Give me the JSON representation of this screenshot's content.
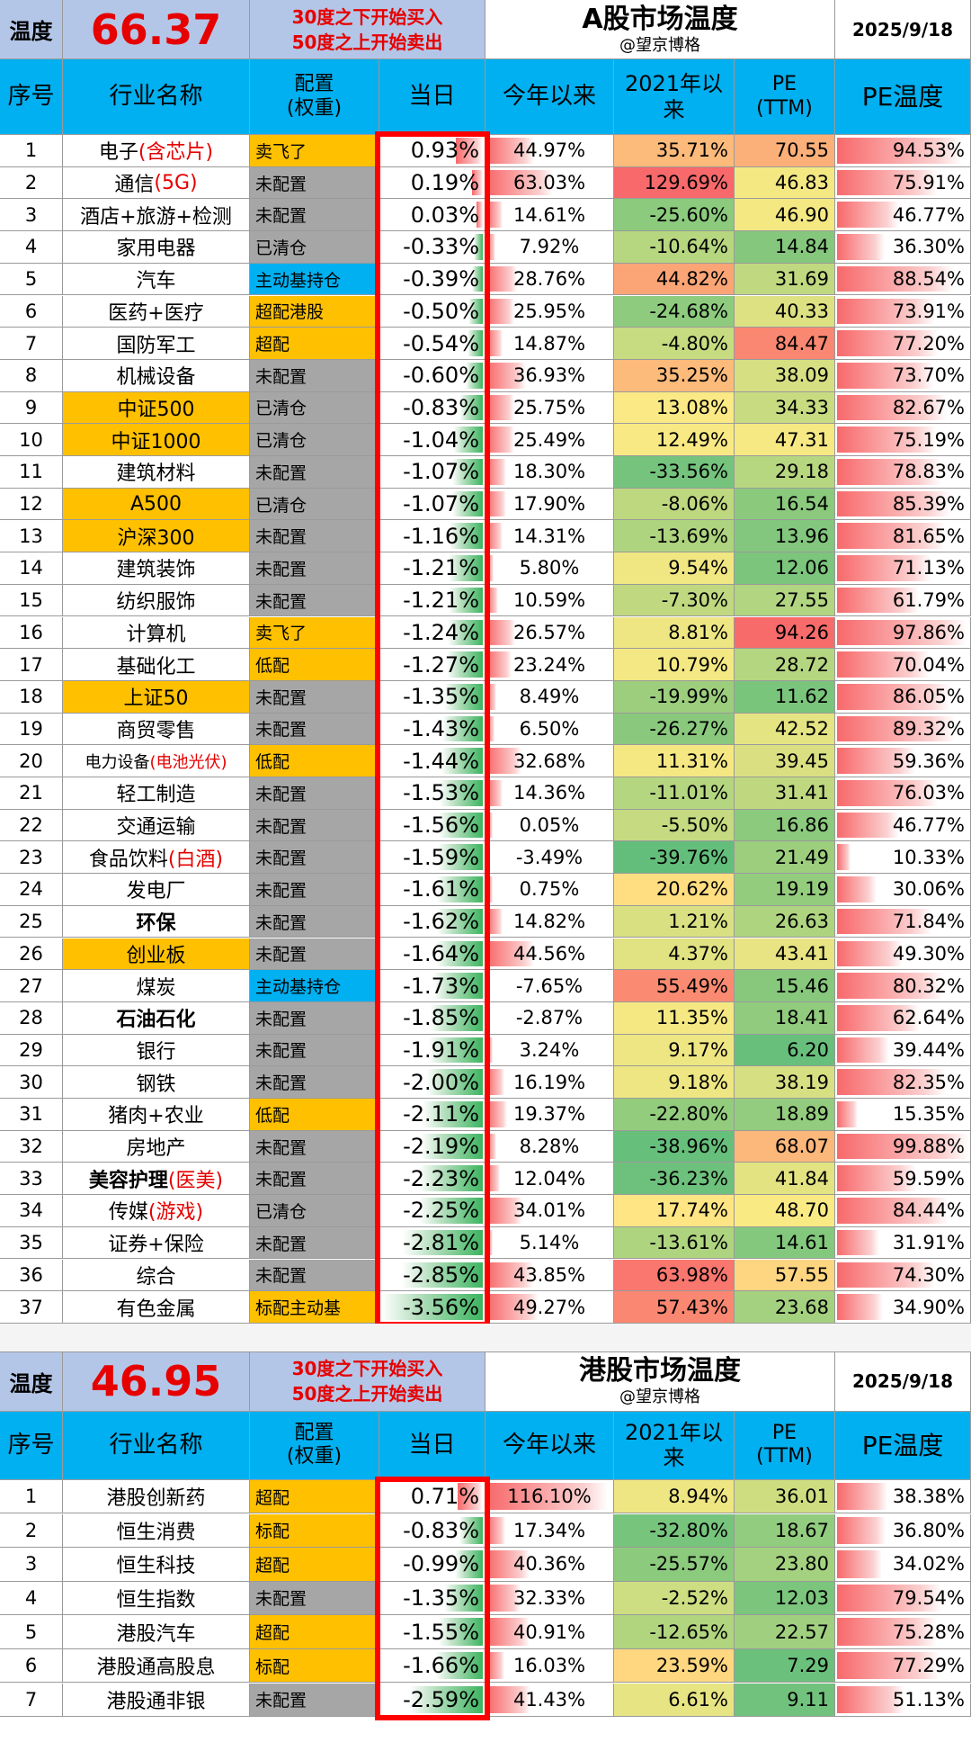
{
  "a_share": {
    "temp_label": "温度",
    "temp_value": "66.37",
    "rule_line1": "30度之下开始买入",
    "rule_line2": "50度之上开始卖出",
    "title": "A股市场温度",
    "author": "@望京博格",
    "date": "2025/9/18",
    "headers": [
      "序号",
      "行业名称",
      "配置\n(权重)",
      "当日",
      "今年以来",
      "2021年以来",
      "PE\n(TTM)",
      "PE温度"
    ],
    "rows": [
      {
        "no": "1",
        "name": "电子",
        "name_red": "(含芯片)",
        "alloc": "卖飞了",
        "day": "0.93%",
        "ytd": "44.97%",
        "since21": "35.71%",
        "pe": "70.55",
        "pet": "94.53%"
      },
      {
        "no": "2",
        "name": "通信",
        "name_red": "(5G)",
        "alloc": "未配置",
        "day": "0.19%",
        "ytd": "63.03%",
        "since21": "129.69%",
        "pe": "46.83",
        "pet": "75.91%"
      },
      {
        "no": "3",
        "name": "酒店+旅游+检测",
        "name_red": "",
        "alloc": "未配置",
        "day": "0.03%",
        "ytd": "14.61%",
        "since21": "-25.60%",
        "pe": "46.90",
        "pet": "46.77%"
      },
      {
        "no": "4",
        "name": "家用电器",
        "name_red": "",
        "alloc": "已清仓",
        "day": "-0.33%",
        "ytd": "7.92%",
        "since21": "-10.64%",
        "pe": "14.84",
        "pet": "36.30%"
      },
      {
        "no": "5",
        "name": "汽车",
        "name_red": "",
        "alloc": "主动基持仓",
        "day": "-0.39%",
        "ytd": "28.76%",
        "since21": "44.82%",
        "pe": "31.69",
        "pet": "88.54%"
      },
      {
        "no": "6",
        "name": "医药+医疗",
        "name_red": "",
        "alloc": "超配港股",
        "day": "-0.50%",
        "ytd": "25.95%",
        "since21": "-24.68%",
        "pe": "40.33",
        "pet": "73.91%"
      },
      {
        "no": "7",
        "name": "国防军工",
        "name_red": "",
        "alloc": "超配",
        "day": "-0.54%",
        "ytd": "14.87%",
        "since21": "-4.80%",
        "pe": "84.47",
        "pet": "77.20%"
      },
      {
        "no": "8",
        "name": "机械设备",
        "name_red": "",
        "alloc": "未配置",
        "day": "-0.60%",
        "ytd": "36.93%",
        "since21": "35.25%",
        "pe": "38.09",
        "pet": "73.70%"
      },
      {
        "no": "9",
        "name": "中证500",
        "name_red": "",
        "alloc": "已清仓",
        "day": "-0.83%",
        "ytd": "25.75%",
        "since21": "13.08%",
        "pe": "34.33",
        "pet": "82.67%"
      },
      {
        "no": "10",
        "name": "中证1000",
        "name_red": "",
        "alloc": "已清仓",
        "day": "-1.04%",
        "ytd": "25.49%",
        "since21": "12.49%",
        "pe": "47.31",
        "pet": "75.19%"
      },
      {
        "no": "11",
        "name": "建筑材料",
        "name_red": "",
        "alloc": "未配置",
        "day": "-1.07%",
        "ytd": "18.30%",
        "since21": "-33.56%",
        "pe": "29.18",
        "pet": "78.83%"
      },
      {
        "no": "12",
        "name": "A500",
        "name_red": "",
        "alloc": "已清仓",
        "day": "-1.07%",
        "ytd": "17.90%",
        "since21": "-8.06%",
        "pe": "16.54",
        "pet": "85.39%"
      },
      {
        "no": "13",
        "name": "沪深300",
        "name_red": "",
        "alloc": "未配置",
        "day": "-1.16%",
        "ytd": "14.31%",
        "since21": "-13.69%",
        "pe": "13.96",
        "pet": "81.65%"
      },
      {
        "no": "14",
        "name": "建筑装饰",
        "name_red": "",
        "alloc": "未配置",
        "day": "-1.21%",
        "ytd": "5.80%",
        "since21": "9.54%",
        "pe": "12.06",
        "pet": "71.13%"
      },
      {
        "no": "15",
        "name": "纺织服饰",
        "name_red": "",
        "alloc": "未配置",
        "day": "-1.21%",
        "ytd": "10.59%",
        "since21": "-7.30%",
        "pe": "27.55",
        "pet": "61.79%"
      },
      {
        "no": "16",
        "name": "计算机",
        "name_red": "",
        "alloc": "卖飞了",
        "day": "-1.24%",
        "ytd": "26.57%",
        "since21": "8.81%",
        "pe": "94.26",
        "pet": "97.86%"
      },
      {
        "no": "17",
        "name": "基础化工",
        "name_red": "",
        "alloc": "低配",
        "day": "-1.27%",
        "ytd": "23.24%",
        "since21": "10.79%",
        "pe": "28.72",
        "pet": "70.04%"
      },
      {
        "no": "18",
        "name": "上证50",
        "name_red": "",
        "alloc": "未配置",
        "day": "-1.35%",
        "ytd": "8.49%",
        "since21": "-19.99%",
        "pe": "11.62",
        "pet": "86.05%"
      },
      {
        "no": "19",
        "name": "商贸零售",
        "name_red": "",
        "alloc": "未配置",
        "day": "-1.43%",
        "ytd": "6.50%",
        "since21": "-26.27%",
        "pe": "42.52",
        "pet": "89.32%"
      },
      {
        "no": "20",
        "name": "电力设备",
        "name_red": "(电池光伏)",
        "alloc": "低配",
        "day": "-1.44%",
        "ytd": "32.68%",
        "since21": "11.31%",
        "pe": "39.45",
        "pet": "59.36%"
      },
      {
        "no": "21",
        "name": "轻工制造",
        "name_red": "",
        "alloc": "未配置",
        "day": "-1.53%",
        "ytd": "14.36%",
        "since21": "-11.01%",
        "pe": "31.41",
        "pet": "76.03%"
      },
      {
        "no": "22",
        "name": "交通运输",
        "name_red": "",
        "alloc": "未配置",
        "day": "-1.56%",
        "ytd": "0.05%",
        "since21": "-5.50%",
        "pe": "16.86",
        "pet": "46.77%"
      },
      {
        "no": "23",
        "name": "食品饮料",
        "name_red": "(白酒)",
        "alloc": "未配置",
        "day": "-1.59%",
        "ytd": "-3.49%",
        "since21": "-39.76%",
        "pe": "21.49",
        "pet": "10.33%"
      },
      {
        "no": "24",
        "name": "发电厂",
        "name_red": "",
        "alloc": "未配置",
        "day": "-1.61%",
        "ytd": "0.75%",
        "since21": "20.62%",
        "pe": "19.19",
        "pet": "30.06%"
      },
      {
        "no": "25",
        "name": "环保",
        "name_red": "",
        "alloc": "未配置",
        "day": "-1.62%",
        "ytd": "14.82%",
        "since21": "1.21%",
        "pe": "26.63",
        "pet": "71.84%"
      },
      {
        "no": "26",
        "name": "创业板",
        "name_red": "",
        "alloc": "未配置",
        "day": "-1.64%",
        "ytd": "44.56%",
        "since21": "4.37%",
        "pe": "43.41",
        "pet": "49.30%"
      },
      {
        "no": "27",
        "name": "煤炭",
        "name_red": "",
        "alloc": "主动基持仓",
        "day": "-1.73%",
        "ytd": "-7.65%",
        "since21": "55.49%",
        "pe": "15.46",
        "pet": "80.32%"
      },
      {
        "no": "28",
        "name": "石油石化",
        "name_red": "",
        "alloc": "未配置",
        "day": "-1.85%",
        "ytd": "-2.87%",
        "since21": "11.35%",
        "pe": "18.41",
        "pet": "62.64%"
      },
      {
        "no": "29",
        "name": "银行",
        "name_red": "",
        "alloc": "未配置",
        "day": "-1.91%",
        "ytd": "3.24%",
        "since21": "9.17%",
        "pe": "6.20",
        "pet": "39.44%"
      },
      {
        "no": "30",
        "name": "钢铁",
        "name_red": "",
        "alloc": "未配置",
        "day": "-2.00%",
        "ytd": "16.19%",
        "since21": "9.18%",
        "pe": "38.19",
        "pet": "82.35%"
      },
      {
        "no": "31",
        "name": "猪肉+农业",
        "name_red": "",
        "alloc": "低配",
        "day": "-2.11%",
        "ytd": "19.37%",
        "since21": "-22.80%",
        "pe": "18.89",
        "pet": "15.35%"
      },
      {
        "no": "32",
        "name": "房地产",
        "name_red": "",
        "alloc": "未配置",
        "day": "-2.19%",
        "ytd": "8.28%",
        "since21": "-38.96%",
        "pe": "68.07",
        "pet": "99.88%"
      },
      {
        "no": "33",
        "name": "美容护理",
        "name_red": "(医美)",
        "alloc": "未配置",
        "day": "-2.23%",
        "ytd": "12.04%",
        "since21": "-36.23%",
        "pe": "41.84",
        "pet": "59.59%"
      },
      {
        "no": "34",
        "name": "传媒",
        "name_red": "(游戏)",
        "alloc": "已清仓",
        "day": "-2.25%",
        "ytd": "34.01%",
        "since21": "17.74%",
        "pe": "48.70",
        "pet": "84.44%"
      },
      {
        "no": "35",
        "name": "证券+保险",
        "name_red": "",
        "alloc": "未配置",
        "day": "-2.81%",
        "ytd": "5.14%",
        "since21": "-13.61%",
        "pe": "14.61",
        "pet": "31.91%"
      },
      {
        "no": "36",
        "name": "综合",
        "name_red": "",
        "alloc": "未配置",
        "day": "-2.85%",
        "ytd": "43.85%",
        "since21": "63.98%",
        "pe": "57.55",
        "pet": "74.30%"
      },
      {
        "no": "37",
        "name": "有色金属",
        "name_red": "",
        "alloc": "标配主动基",
        "day": "-3.56%",
        "ytd": "49.27%",
        "since21": "57.43%",
        "pe": "23.68",
        "pet": "34.90%"
      }
    ]
  },
  "hk_share": {
    "temp_label": "温度",
    "temp_value": "46.95",
    "rule_line1": "30度之下开始买入",
    "rule_line2": "50度之上开始卖出",
    "title": "港股市场温度",
    "author": "@望京博格",
    "date": "2025/9/18",
    "headers": [
      "序号",
      "行业名称",
      "配置\n(权重)",
      "当日",
      "今年以来",
      "2021年以\n来",
      "PE\n(TTM)",
      "PE温度"
    ],
    "rows": [
      {
        "no": "1",
        "name": "港股创新药",
        "name_red": "",
        "alloc": "超配",
        "day": "0.71%",
        "ytd": "116.10%",
        "since21": "8.94%",
        "pe": "36.01",
        "pet": "38.38%"
      },
      {
        "no": "2",
        "name": "恒生消费",
        "name_red": "",
        "alloc": "标配",
        "day": "-0.83%",
        "ytd": "17.34%",
        "since21": "-32.80%",
        "pe": "18.67",
        "pet": "36.80%"
      },
      {
        "no": "3",
        "name": "恒生科技",
        "name_red": "",
        "alloc": "超配",
        "day": "-0.99%",
        "ytd": "40.36%",
        "since21": "-25.57%",
        "pe": "23.80",
        "pet": "34.02%"
      },
      {
        "no": "4",
        "name": "恒生指数",
        "name_red": "",
        "alloc": "未配置",
        "day": "-1.35%",
        "ytd": "32.33%",
        "since21": "-2.52%",
        "pe": "12.03",
        "pet": "79.54%"
      },
      {
        "no": "5",
        "name": "港股汽车",
        "name_red": "",
        "alloc": "超配",
        "day": "-1.55%",
        "ytd": "40.91%",
        "since21": "-12.65%",
        "pe": "22.57",
        "pet": "75.28%"
      },
      {
        "no": "6",
        "name": "港股通高股息",
        "name_red": "",
        "alloc": "标配",
        "day": "-1.66%",
        "ytd": "16.03%",
        "since21": "23.59%",
        "pe": "7.29",
        "pet": "77.29%"
      },
      {
        "no": "7",
        "name": "港股通非银",
        "name_red": "",
        "alloc": "未配置",
        "day": "-2.59%",
        "ytd": "41.43%",
        "since21": "6.61%",
        "pe": "9.11",
        "pet": "51.13%"
      }
    ]
  },
  "colors": {
    "header_blue": "#00b0f0",
    "alloc_grey": "#a6a6a6",
    "highlight_gold": "#ffc000",
    "accent_red": "#e60000",
    "box_red": "#ff0000",
    "bar_green": "#3cb460",
    "bar_red": "#f8696b"
  }
}
